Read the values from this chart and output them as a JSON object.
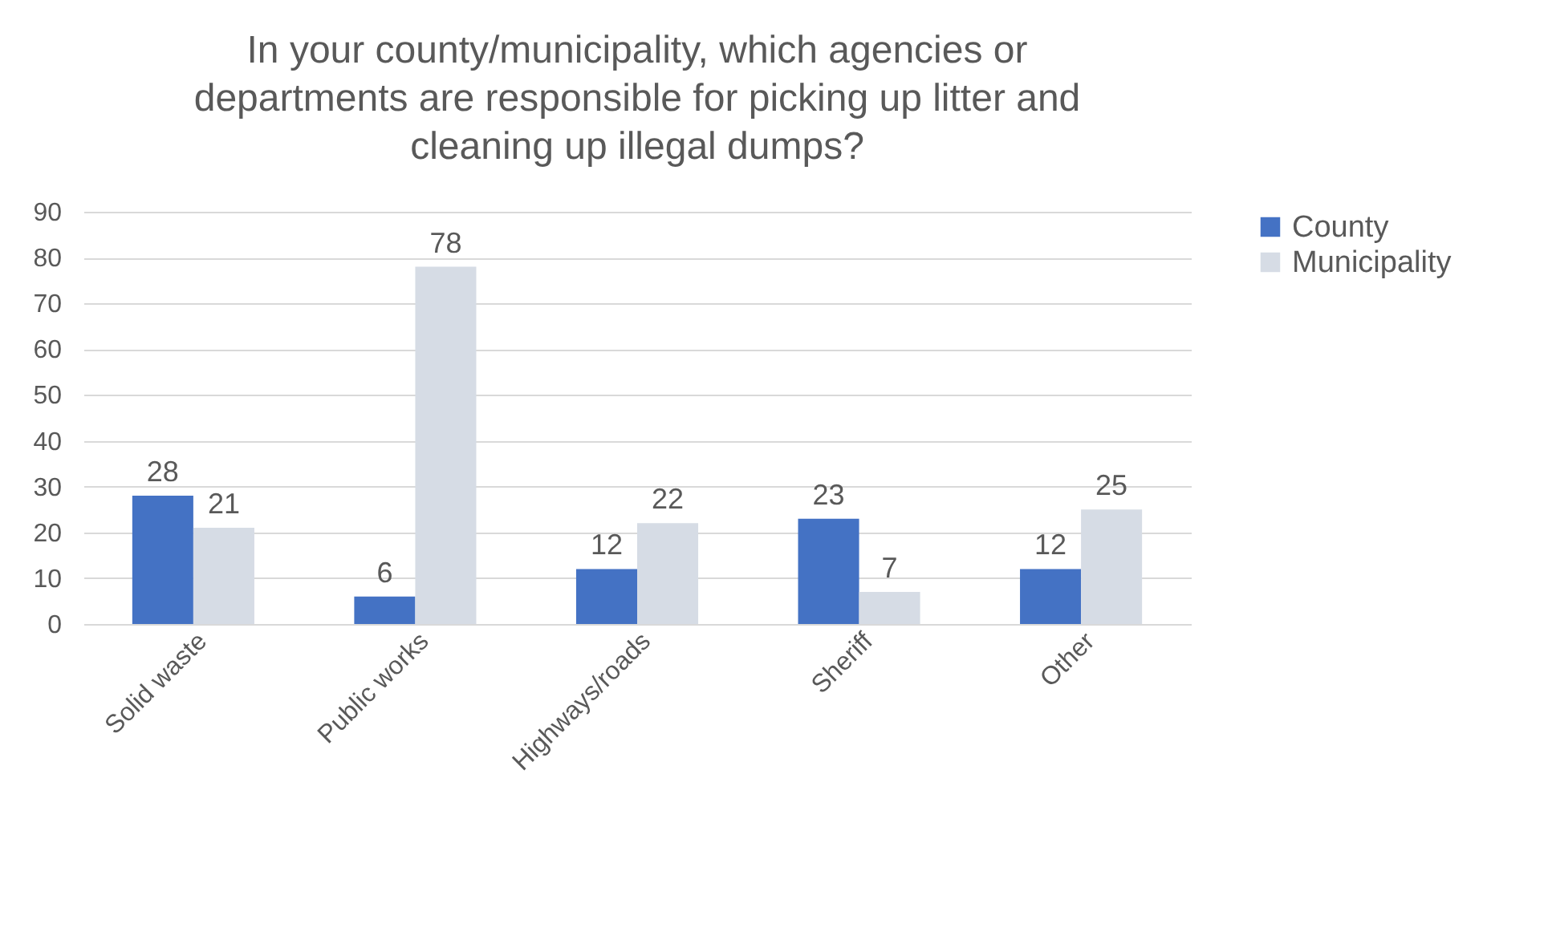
{
  "chart_data": {
    "type": "bar",
    "title": "In your county/municipality, which agencies or\ndepartments are responsible for picking up litter and\ncleaning up illegal dumps?",
    "categories": [
      "Solid waste",
      "Public works",
      "Highways/roads",
      "Sheriff",
      "Other"
    ],
    "series": [
      {
        "name": "County",
        "color": "#4472c4",
        "values": [
          28,
          6,
          12,
          23,
          12
        ]
      },
      {
        "name": "Municipality",
        "color": "#d6dce5",
        "values": [
          21,
          78,
          22,
          7,
          25
        ]
      }
    ],
    "ylim": [
      0,
      90
    ],
    "yticks": [
      0,
      10,
      20,
      30,
      40,
      50,
      60,
      70,
      80,
      90
    ],
    "grid": "y",
    "legend": "right",
    "data_labels": true
  }
}
